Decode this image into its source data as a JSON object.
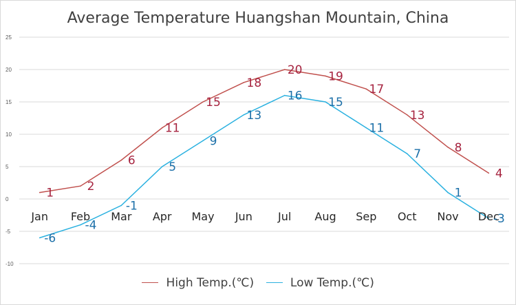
{
  "chart_data": {
    "type": "line",
    "title": "Average Temperature Huangshan Mountain, China",
    "categories": [
      "Jan",
      "Feb",
      "Mar",
      "Apr",
      "May",
      "Jun",
      "Jul",
      "Aug",
      "Sep",
      "Oct",
      "Nov",
      "Dec"
    ],
    "series": [
      {
        "name": "High Temp.(℃)",
        "color": "#c0504d",
        "label_color": "#a6233f",
        "values": [
          1,
          2,
          6,
          11,
          15,
          18,
          20,
          19,
          17,
          13,
          8,
          4
        ]
      },
      {
        "name": "Low Temp.(℃)",
        "color": "#2ab1e0",
        "label_color": "#1b6fa8",
        "values": [
          -6,
          -4,
          -1,
          5,
          9,
          13,
          16,
          15,
          11,
          7,
          1,
          -3
        ]
      }
    ],
    "ylim": [
      -10,
      25
    ],
    "yticks": [
      "25",
      "20",
      "15",
      "10",
      "5",
      "0",
      "-5",
      "-10"
    ],
    "xlabel": "",
    "ylabel": "",
    "grid": true,
    "legend": "bottom"
  }
}
